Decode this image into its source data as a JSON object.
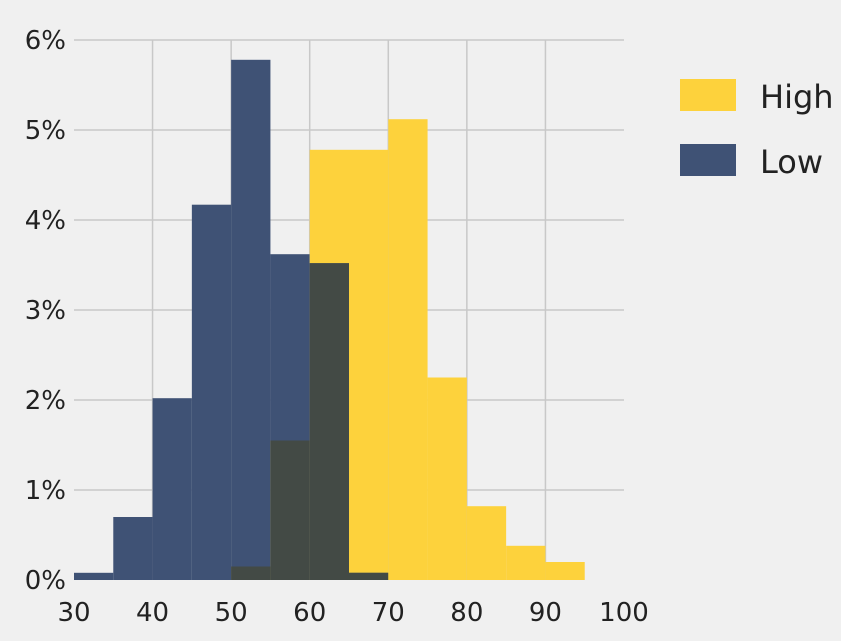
{
  "chart_data": {
    "type": "histogram",
    "bin_edges": [
      30,
      35,
      40,
      45,
      50,
      55,
      60,
      65,
      70,
      75,
      80,
      85,
      90,
      95
    ],
    "series": [
      {
        "name": "High",
        "color": "#fdd23c",
        "values": [
          0,
          0,
          0,
          0,
          0.15,
          1.55,
          4.78,
          4.78,
          5.12,
          2.25,
          0.82,
          0.38,
          0.2
        ]
      },
      {
        "name": "Low",
        "color": "#3f5275",
        "values": [
          0.08,
          0.7,
          2.02,
          4.17,
          5.78,
          3.62,
          3.52,
          0.08,
          0,
          0,
          0,
          0,
          0
        ]
      }
    ],
    "overlap_color": "#434a45",
    "xlim": [
      30,
      100
    ],
    "ylim": [
      0,
      6
    ],
    "xticks": [
      30,
      40,
      50,
      60,
      70,
      80,
      90,
      100
    ],
    "xtick_labels": [
      "30",
      "40",
      "50",
      "60",
      "70",
      "80",
      "90",
      "100"
    ],
    "yticks": [
      0,
      1,
      2,
      3,
      4,
      5,
      6
    ],
    "ytick_labels": [
      "0%",
      "1%",
      "2%",
      "3%",
      "4%",
      "5%",
      "6%"
    ],
    "grid": true,
    "legend_position": "right",
    "background_color": "#f0f0f0",
    "grid_color": "#c8c8c8",
    "title": "",
    "xlabel": "",
    "ylabel": ""
  }
}
